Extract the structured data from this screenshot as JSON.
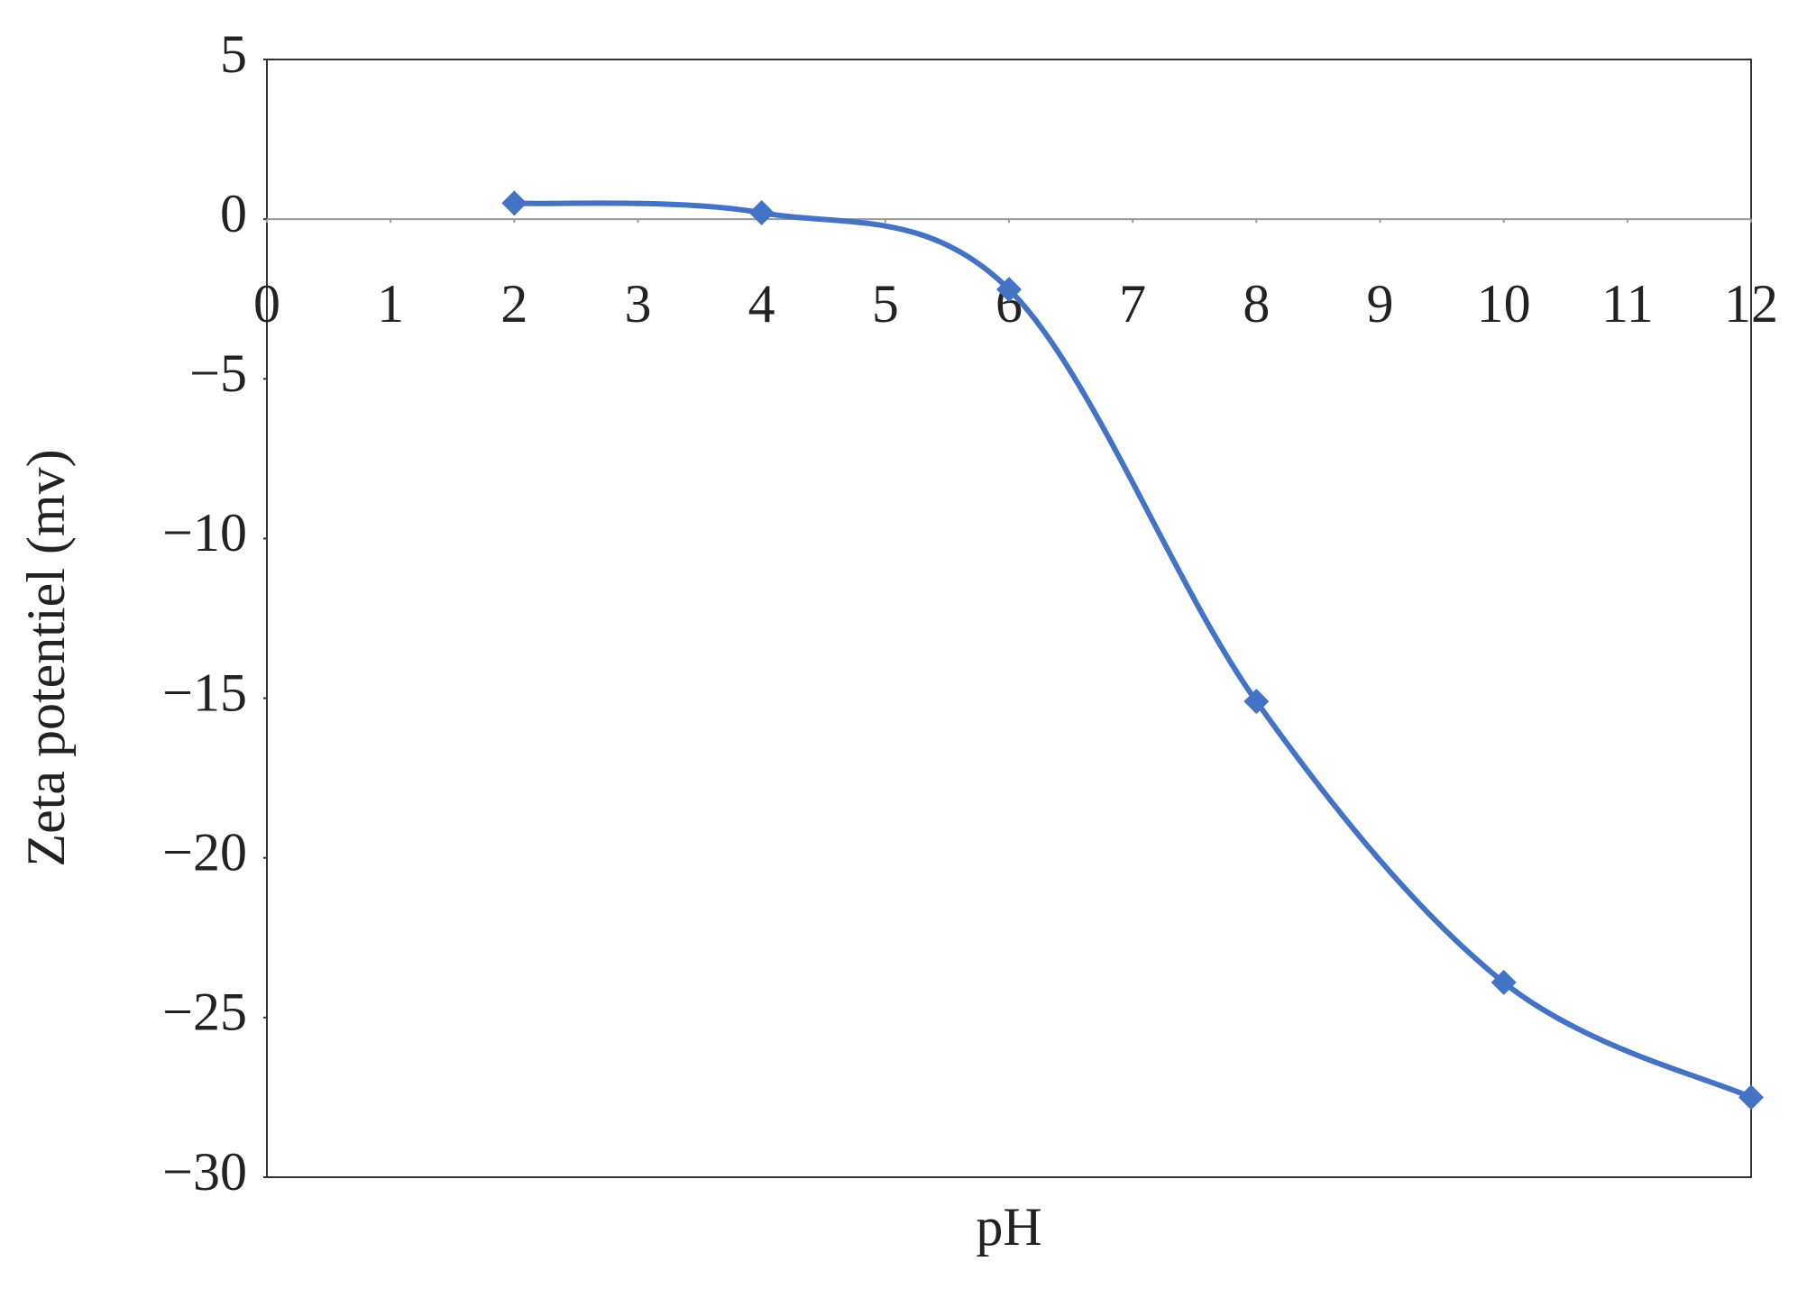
{
  "chart_data": {
    "type": "line",
    "x_label": "pH",
    "y_label": "Zeta potentiel (mv)",
    "x": [
      2,
      4,
      6,
      8,
      10,
      12
    ],
    "series": [
      {
        "color": "#4472c4",
        "values": [
          0.5,
          0.2,
          -2.2,
          -15.1,
          -23.9,
          -27.5
        ]
      }
    ],
    "xlim": [
      0,
      12
    ],
    "xticks": [
      0,
      1,
      2,
      3,
      4,
      5,
      6,
      7,
      8,
      9,
      10,
      11,
      12
    ],
    "ylim": [
      -30,
      5
    ],
    "yticks": [
      {
        "value": -30,
        "label": "−30"
      },
      {
        "value": -25,
        "label": "−25"
      },
      {
        "value": -20,
        "label": "−20"
      },
      {
        "value": -15,
        "label": "−15"
      },
      {
        "value": -10,
        "label": "−10"
      },
      {
        "value": -5,
        "label": "−5"
      },
      0,
      5
    ],
    "smooth": true,
    "marker": "diamond"
  }
}
